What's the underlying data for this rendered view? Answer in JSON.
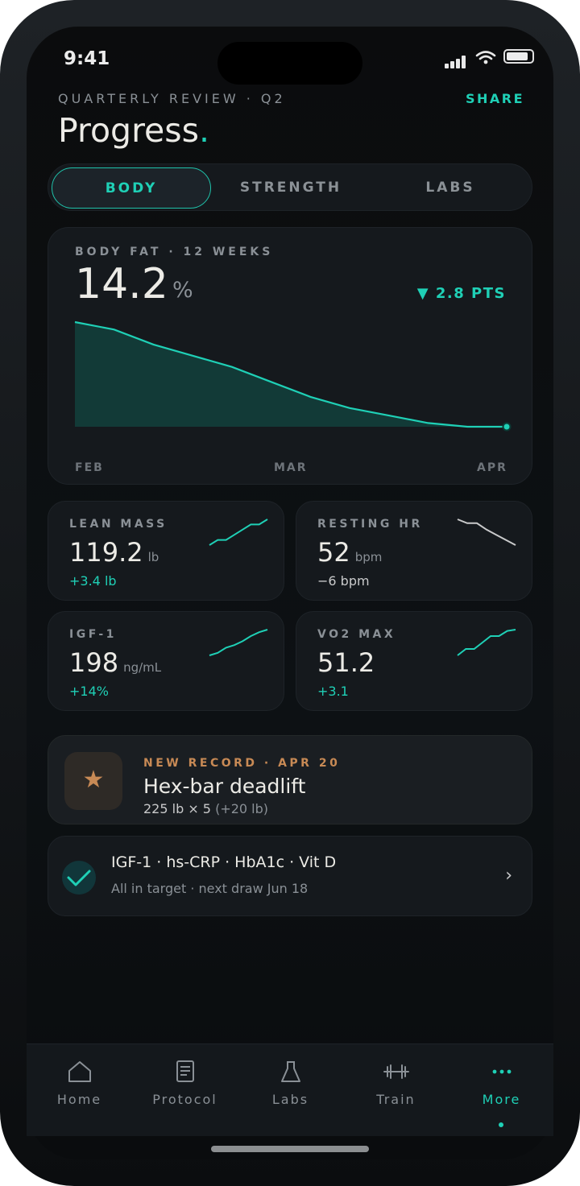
{
  "status": {
    "time": "9:41"
  },
  "header": {
    "eyebrow": "QUARTERLY REVIEW · Q2",
    "share_label": "SHARE",
    "title": "Progress",
    "title_dot": "."
  },
  "segments": [
    {
      "label": "BODY",
      "active": true
    },
    {
      "label": "STRENGTH",
      "active": false
    },
    {
      "label": "LABS",
      "active": false
    }
  ],
  "body_fat": {
    "label": "BODY FAT · 12 WEEKS",
    "value": "14.2",
    "unit": "%",
    "delta": "▼ 2.8 PTS",
    "months": [
      "FEB",
      "MAR",
      "APR"
    ]
  },
  "chart_data": {
    "type": "area",
    "title": "BODY FAT · 12 WEEKS",
    "x": [
      1,
      2,
      3,
      4,
      5,
      6,
      7,
      8,
      9,
      10,
      11,
      12
    ],
    "x_tick_labels": [
      "FEB",
      "MAR",
      "APR"
    ],
    "series": [
      {
        "values": [
          17.0,
          16.8,
          16.4,
          16.1,
          15.8,
          15.4,
          15.0,
          14.7,
          14.5,
          14.3,
          14.2,
          14.2
        ]
      }
    ],
    "ylim": [
      14.2,
      17.0
    ],
    "grid": false,
    "colors": {
      "line": "#1fd0b6",
      "fill": "#123a37"
    }
  },
  "stats": [
    {
      "label": "LEAN MASS",
      "value": "119.2",
      "unit": "lb",
      "delta": "+3.4 lb",
      "trend": "up",
      "spark": [
        0,
        0.2,
        0.2,
        0.4,
        0.6,
        0.8,
        0.8,
        1.0
      ]
    },
    {
      "label": "RESTING HR",
      "value": "52",
      "unit": "bpm",
      "delta": "−6 bpm",
      "trend": "down",
      "spark": [
        1.0,
        0.85,
        0.85,
        0.6,
        0.4,
        0.2,
        0.0
      ]
    },
    {
      "label": "IGF-1",
      "value": "198",
      "unit": "ng/mL",
      "delta": "+14%",
      "trend": "up",
      "spark": [
        0,
        0.1,
        0.3,
        0.4,
        0.55,
        0.75,
        0.9,
        1.0
      ]
    },
    {
      "label": "VO2 MAX",
      "value": "51.2",
      "unit": "",
      "delta": "+3.1",
      "trend": "up",
      "spark": [
        0,
        0.25,
        0.25,
        0.5,
        0.75,
        0.75,
        0.95,
        1.0
      ]
    }
  ],
  "record": {
    "eyebrow": "NEW RECORD · APR 20",
    "title": "Hex-bar deadlift",
    "detail": "225 lb × 5",
    "detail_extra": "(+20 lb)",
    "icon": "star-icon"
  },
  "labs": {
    "title": "IGF-1 · hs-CRP · HbA1c · Vit D",
    "subtitle": "All in target · next draw Jun 18",
    "icon": "check-icon"
  },
  "tabs": [
    {
      "label": "Home",
      "icon": "home-icon",
      "active": false
    },
    {
      "label": "Protocol",
      "icon": "document-icon",
      "active": false
    },
    {
      "label": "Labs",
      "icon": "flask-icon",
      "active": false
    },
    {
      "label": "Train",
      "icon": "dumbbell-icon",
      "active": false
    },
    {
      "label": "More",
      "icon": "more-icon",
      "active": true
    }
  ],
  "colors": {
    "accent": "#1fd0b6",
    "record": "#c88a55",
    "background": "#0b0c0d",
    "card": "#15191d"
  }
}
